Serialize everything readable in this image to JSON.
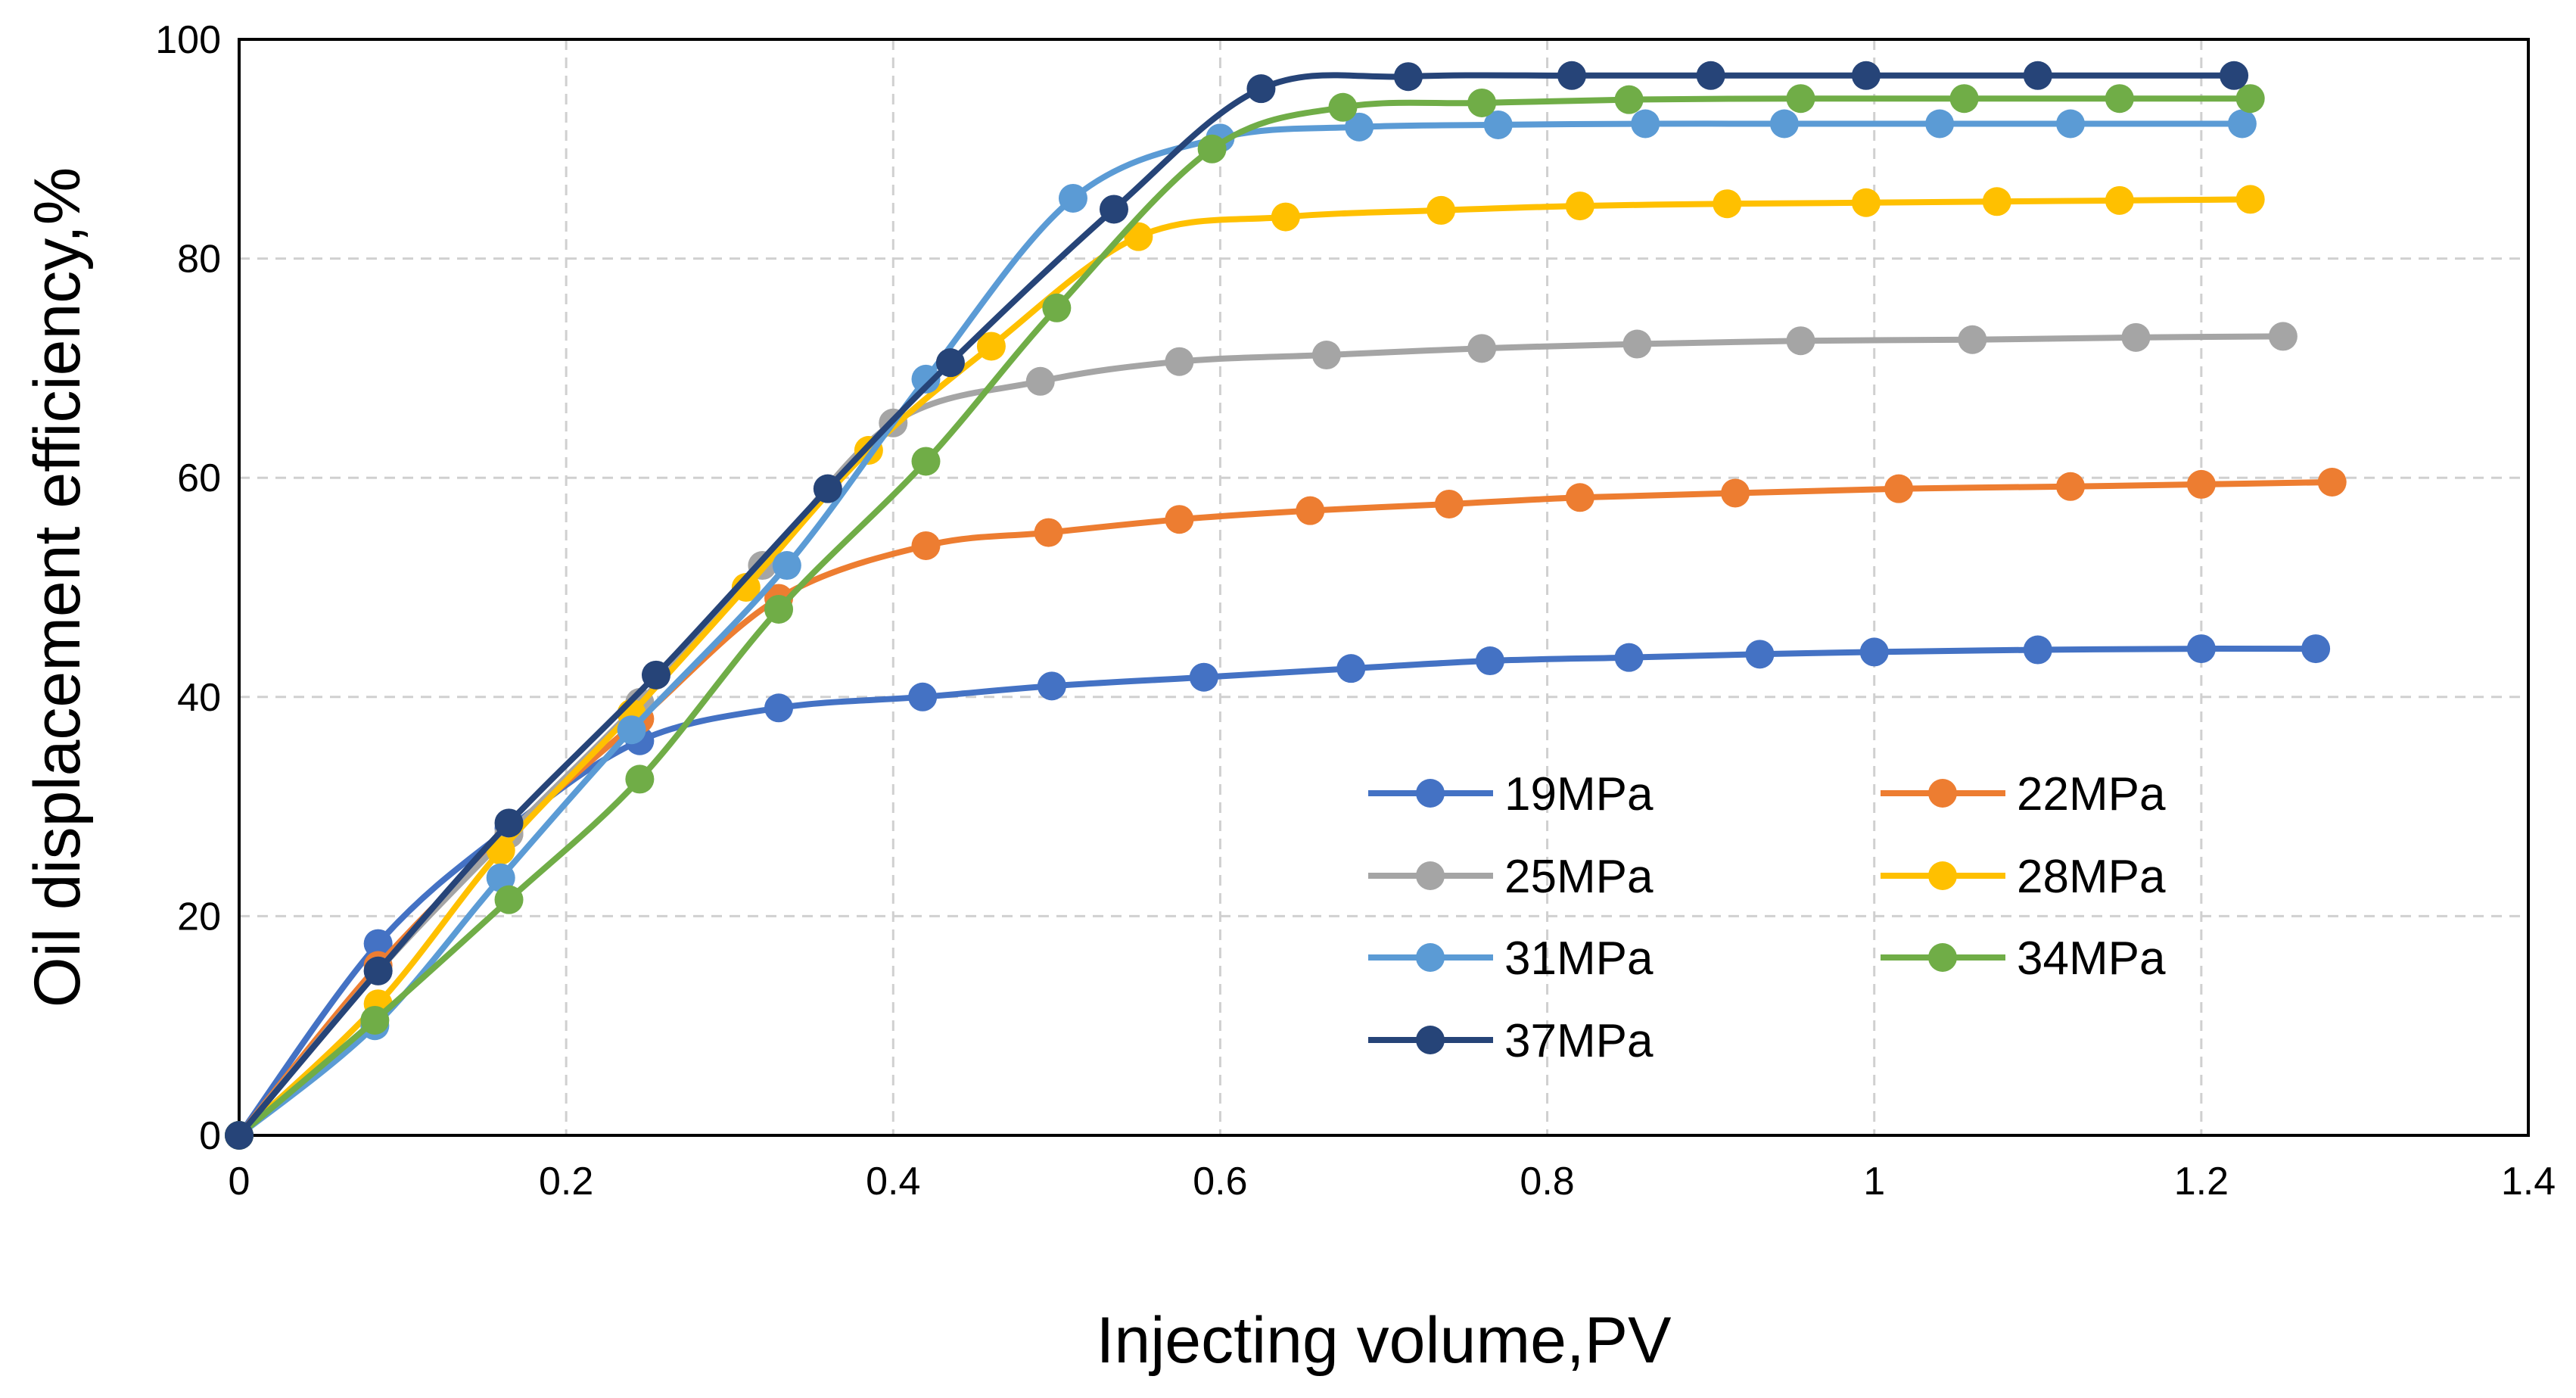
{
  "chart_data": {
    "type": "line",
    "title": "",
    "xlabel": "Injecting volume,PV",
    "ylabel": "Oil displacement efficiency,%",
    "xlim": [
      0,
      1.4
    ],
    "ylim": [
      0,
      100
    ],
    "xticks": [
      0,
      0.2,
      0.4,
      0.6,
      0.8,
      1,
      1.2,
      1.4
    ],
    "xtick_labels": [
      "0",
      "0.2",
      "0.4",
      "0.6",
      "0.8",
      "1",
      "1.2",
      "1.4"
    ],
    "yticks": [
      0,
      20,
      40,
      60,
      80,
      100
    ],
    "ytick_labels": [
      "0",
      "20",
      "40",
      "60",
      "80",
      "100"
    ],
    "grid": true,
    "legend_position": "bottom-right inside plot, two columns",
    "series": [
      {
        "name": "19MPa",
        "color": "#4472C4",
        "x": [
          0,
          0.085,
          0.165,
          0.245,
          0.33,
          0.418,
          0.497,
          0.59,
          0.68,
          0.765,
          0.85,
          0.93,
          1.0,
          1.1,
          1.2,
          1.27
        ],
        "y": [
          0,
          17.5,
          28,
          36,
          39,
          40,
          41,
          41.8,
          42.6,
          43.3,
          43.6,
          43.9,
          44.1,
          44.3,
          44.4,
          44.4
        ]
      },
      {
        "name": "22MPa",
        "color": "#ED7D31",
        "x": [
          0,
          0.085,
          0.165,
          0.245,
          0.33,
          0.42,
          0.495,
          0.575,
          0.655,
          0.74,
          0.82,
          0.915,
          1.015,
          1.12,
          1.2,
          1.28
        ],
        "y": [
          0,
          15.5,
          27.5,
          38,
          49,
          53.8,
          55,
          56.2,
          57,
          57.6,
          58.2,
          58.6,
          59,
          59.2,
          59.4,
          59.6
        ]
      },
      {
        "name": "25MPa",
        "color": "#A5A5A5",
        "x": [
          0,
          0.085,
          0.165,
          0.245,
          0.32,
          0.4,
          0.49,
          0.575,
          0.665,
          0.76,
          0.855,
          0.955,
          1.06,
          1.16,
          1.25
        ],
        "y": [
          0,
          15,
          27.5,
          39.5,
          52,
          65,
          68.8,
          70.6,
          71.2,
          71.8,
          72.2,
          72.5,
          72.6,
          72.8,
          72.9
        ]
      },
      {
        "name": "28MPa",
        "color": "#FFC000",
        "x": [
          0,
          0.085,
          0.16,
          0.24,
          0.31,
          0.385,
          0.46,
          0.55,
          0.64,
          0.735,
          0.82,
          0.91,
          0.995,
          1.075,
          1.15,
          1.23
        ],
        "y": [
          0,
          12,
          26,
          38.5,
          50,
          62.5,
          72,
          82,
          83.8,
          84.4,
          84.8,
          85,
          85.1,
          85.2,
          85.3,
          85.4
        ]
      },
      {
        "name": "31MPa",
        "color": "#5B9BD5",
        "x": [
          0,
          0.083,
          0.16,
          0.24,
          0.335,
          0.42,
          0.51,
          0.6,
          0.685,
          0.77,
          0.86,
          0.945,
          1.04,
          1.12,
          1.225
        ],
        "y": [
          0,
          10,
          23.5,
          37,
          52,
          69,
          85.5,
          91,
          92,
          92.2,
          92.3,
          92.3,
          92.3,
          92.3,
          92.3
        ]
      },
      {
        "name": "34MPa",
        "color": "#70AD47",
        "x": [
          0,
          0.083,
          0.165,
          0.245,
          0.33,
          0.42,
          0.5,
          0.595,
          0.675,
          0.76,
          0.85,
          0.955,
          1.055,
          1.15,
          1.23
        ],
        "y": [
          0,
          10.5,
          21.5,
          32.5,
          48,
          61.5,
          75.5,
          90,
          93.8,
          94.2,
          94.5,
          94.6,
          94.6,
          94.6,
          94.6
        ]
      },
      {
        "name": "37MPa",
        "color": "#264478",
        "x": [
          0,
          0.085,
          0.165,
          0.255,
          0.36,
          0.435,
          0.535,
          0.625,
          0.715,
          0.815,
          0.9,
          0.995,
          1.1,
          1.22
        ],
        "y": [
          0,
          15,
          28.5,
          42,
          59,
          70.5,
          84.5,
          95.5,
          96.6,
          96.7,
          96.7,
          96.7,
          96.7,
          96.7
        ]
      }
    ]
  }
}
